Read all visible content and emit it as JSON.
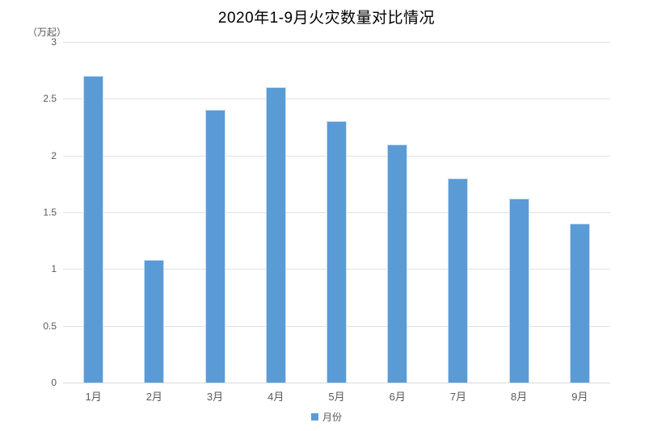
{
  "header": {
    "title": "2020年1-9月火灾数量对比情况",
    "unit_label": "（万起）"
  },
  "legend": {
    "label": "月份"
  },
  "colors": {
    "bar": "#5B9BD5",
    "bar_border": "#C9DFF2",
    "gridline": "#E2E2E2",
    "axis_line": "#D9D9D9",
    "tick_text": "#595959",
    "title_text": "#000000"
  },
  "chart_data": {
    "type": "bar",
    "title": "2020年1-9月火灾数量对比情况",
    "categories": [
      "1月",
      "2月",
      "3月",
      "4月",
      "5月",
      "6月",
      "7月",
      "8月",
      "9月"
    ],
    "values": [
      2.7,
      1.08,
      2.4,
      2.6,
      2.3,
      2.1,
      1.8,
      1.62,
      1.4
    ],
    "xlabel": "",
    "ylabel": "（万起）",
    "ylim": [
      0,
      3
    ],
    "ytick_interval": 0.5,
    "yticks": [
      "0",
      "0.5",
      "1",
      "1.5",
      "2",
      "2.5",
      "3"
    ],
    "grid": true,
    "legend_entries": [
      "月份"
    ],
    "legend_position": "bottom"
  }
}
